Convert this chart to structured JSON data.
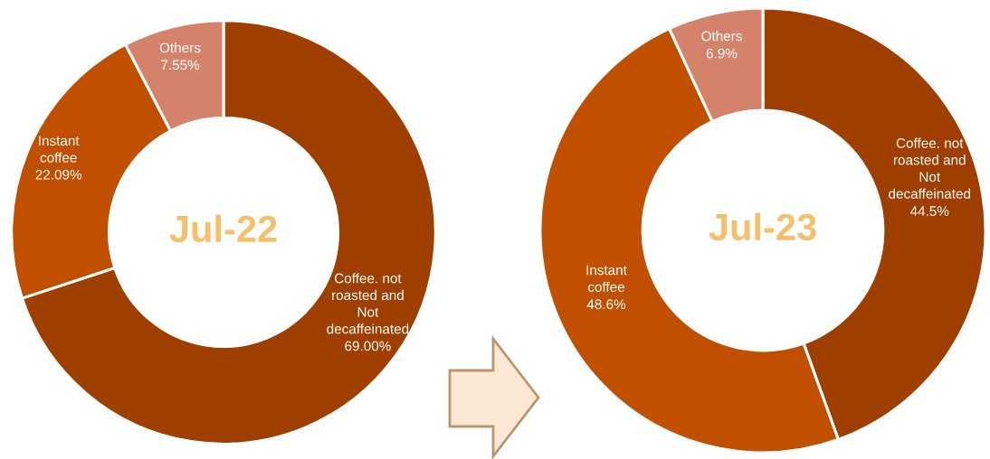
{
  "chart_data": [
    {
      "type": "donut",
      "title": "Jul-22",
      "categories": [
        "Coffee. not roasted and Not decaffeinated",
        "Instant coffee",
        "Others"
      ],
      "values": [
        69.0,
        22.09,
        7.55
      ],
      "colors": [
        "#9e3f00",
        "#c05000",
        "#d4826a"
      ],
      "value_labels": [
        "69.00%",
        "22.09%",
        "7.55%"
      ]
    },
    {
      "type": "donut",
      "title": "Jul-23",
      "categories": [
        "Coffee. not roasted and Not decaffeinated",
        "Instant coffee",
        "Others"
      ],
      "values": [
        44.5,
        48.6,
        6.9
      ],
      "colors": [
        "#9e3f00",
        "#c05000",
        "#d4826a"
      ],
      "value_labels": [
        "44.5%",
        "48.6%",
        "6.9%"
      ]
    }
  ]
}
